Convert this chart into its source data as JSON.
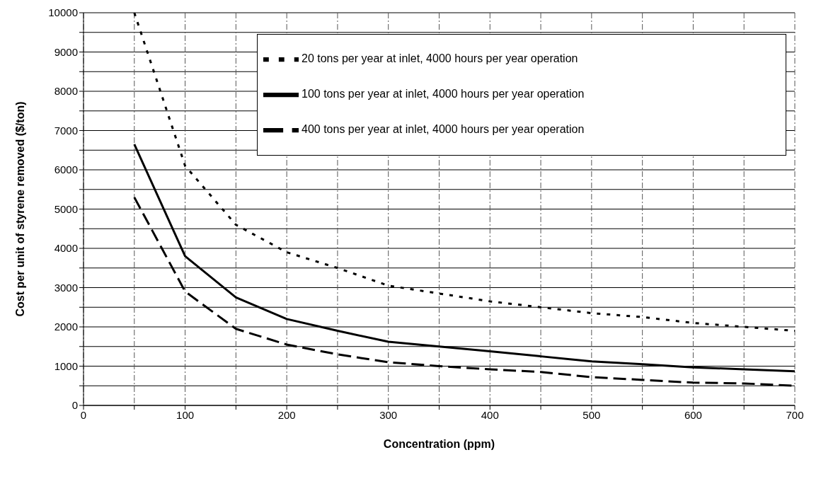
{
  "chart_data": {
    "type": "line",
    "xlabel": "Concentration (ppm)",
    "ylabel": "Cost per unit of styrene removed ($/ton)",
    "x": [
      50,
      100,
      150,
      200,
      250,
      300,
      350,
      400,
      450,
      500,
      550,
      600,
      650,
      700
    ],
    "series": [
      {
        "name": "20 tons per year at inlet, 4000 hours per year operation",
        "color": "#000000",
        "line_style": "dotted",
        "values": [
          10000,
          6100,
          4600,
          3900,
          3500,
          3050,
          2850,
          2650,
          2500,
          2350,
          2250,
          2100,
          2000,
          1900
        ]
      },
      {
        "name": "100 tons per year at inlet, 4000 hours per year operation",
        "color": "#000000",
        "line_style": "solid",
        "values": [
          6650,
          3800,
          2750,
          2200,
          1900,
          1620,
          1500,
          1380,
          1250,
          1120,
          1050,
          970,
          920,
          870
        ]
      },
      {
        "name": "400 tons per year at inlet, 4000 hours per year operation",
        "color": "#000000",
        "line_style": "dashed",
        "values": [
          5300,
          2900,
          1950,
          1550,
          1300,
          1100,
          1000,
          920,
          850,
          720,
          650,
          580,
          560,
          500
        ]
      }
    ],
    "xlim": [
      0,
      700
    ],
    "xticks": [
      0,
      {
        "value": 50,
        "label": null
      },
      100,
      {
        "value": 150,
        "label": null
      },
      200,
      {
        "value": 250,
        "label": null
      },
      300,
      {
        "value": 350,
        "label": null
      },
      400,
      {
        "value": 450,
        "label": null
      },
      500,
      {
        "value": 550,
        "label": null
      },
      600,
      {
        "value": 650,
        "label": null
      },
      700
    ],
    "ylim": [
      0,
      10000
    ],
    "yticks": [
      0,
      {
        "value": 500,
        "label": null
      },
      1000,
      {
        "value": 1500,
        "label": null
      },
      2000,
      {
        "value": 2500,
        "label": null
      },
      3000,
      {
        "value": 3500,
        "label": null
      },
      4000,
      {
        "value": 4500,
        "label": null
      },
      5000,
      {
        "value": 5500,
        "label": null
      },
      6000,
      {
        "value": 6500,
        "label": null
      },
      7000,
      {
        "value": 7500,
        "label": null
      },
      8000,
      {
        "value": 8500,
        "label": null
      },
      9000,
      {
        "value": 9500,
        "label": null
      },
      10000
    ],
    "grid": true,
    "legend": "top right",
    "marker": "none"
  }
}
